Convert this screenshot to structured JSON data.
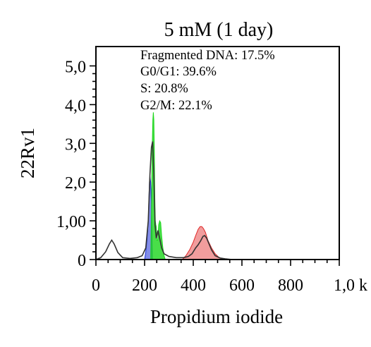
{
  "chart_data": {
    "type": "area",
    "title": "5 mM (1 day)",
    "xlabel": "Propidium iodide",
    "ylabel": "22Rv1",
    "xlim": [
      0,
      1000
    ],
    "ylim": [
      0,
      5.5
    ],
    "x_tick_labels": [
      "0",
      "200",
      "400",
      "600",
      "800",
      "1,0 k"
    ],
    "y_tick_labels": [
      "0",
      "1,00",
      "2,0",
      "3,0",
      "4,0",
      "5,0"
    ],
    "annotations": [
      "Fragmented DNA: 17.5%",
      "G0/G1: 39.6%",
      "S: 20.8%",
      "G2/M: 22.1%"
    ],
    "grid": false,
    "colors": {
      "histogram": "#333333",
      "fragmented_dna": "#1c2fd6",
      "g0_g1": "#1cd61c",
      "s": "#1cd61c",
      "g2_m": "#e02626"
    },
    "series": [
      {
        "kind": "line",
        "x": [
          0,
          20,
          40,
          55,
          65,
          75,
          90,
          110,
          140,
          170,
          190,
          205,
          215,
          222,
          228,
          233,
          238,
          243,
          248,
          255,
          262,
          270,
          280,
          300,
          330,
          360,
          380,
          395,
          410,
          420,
          430,
          440,
          447,
          455,
          465,
          475,
          490,
          510,
          530,
          560,
          600,
          700,
          800,
          900,
          1000
        ],
        "y": [
          0,
          0.05,
          0.2,
          0.4,
          0.5,
          0.4,
          0.18,
          0.05,
          0.03,
          0.05,
          0.1,
          0.3,
          1.0,
          2.2,
          2.9,
          3.05,
          2.2,
          0.9,
          0.55,
          0.75,
          0.55,
          0.3,
          0.15,
          0.08,
          0.05,
          0.05,
          0.08,
          0.15,
          0.3,
          0.38,
          0.48,
          0.6,
          0.62,
          0.55,
          0.4,
          0.25,
          0.1,
          0.04,
          0.02,
          0,
          0,
          0,
          0,
          0,
          0
        ]
      },
      {
        "kind": "fill",
        "x": [
          200,
          205,
          210,
          215,
          218,
          220,
          222,
          225,
          228,
          232
        ],
        "y": [
          0,
          0.2,
          0.5,
          1.0,
          1.6,
          2.0,
          2.15,
          2.0,
          1.5,
          0
        ]
      },
      {
        "kind": "fill",
        "x": [
          225,
          228,
          231,
          234,
          236,
          238,
          240,
          242,
          244,
          246,
          248,
          250,
          254,
          258,
          262,
          266,
          270,
          275,
          280,
          285
        ],
        "y": [
          0,
          1.2,
          2.8,
          3.6,
          3.8,
          3.6,
          2.8,
          1.6,
          1.0,
          0.9,
          0.85,
          0.5,
          0.5,
          0.9,
          1.0,
          0.95,
          0.6,
          0.3,
          0.1,
          0
        ]
      },
      {
        "kind": "fill",
        "x": [
          355,
          370,
          385,
          400,
          410,
          420,
          428,
          435,
          442,
          450,
          460,
          475,
          490,
          505,
          520,
          540
        ],
        "y": [
          0,
          0.1,
          0.25,
          0.45,
          0.62,
          0.78,
          0.85,
          0.85,
          0.8,
          0.7,
          0.5,
          0.3,
          0.15,
          0.06,
          0.02,
          0
        ]
      }
    ]
  }
}
